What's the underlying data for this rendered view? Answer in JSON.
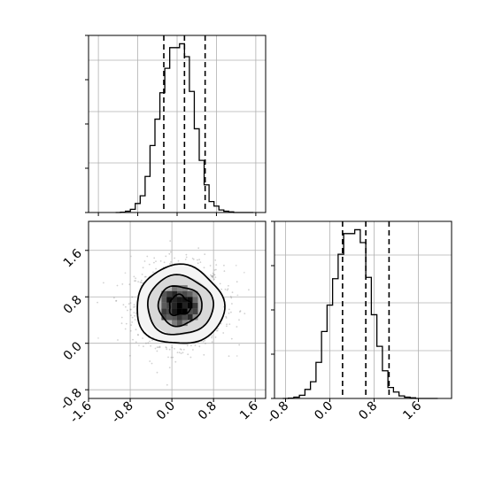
{
  "chart_data": [
    {
      "panel": "histogram-param-1",
      "type": "bar",
      "histtype": "step",
      "x": [
        -1.2,
        -1.1,
        -1.0,
        -0.9,
        -0.8,
        -0.7,
        -0.6,
        -0.5,
        -0.4,
        -0.3,
        -0.2,
        -0.1,
        0.0,
        0.1,
        0.2,
        0.3,
        0.4,
        0.5,
        0.6,
        0.7,
        0.8,
        0.9,
        1.0,
        1.1,
        1.2,
        1.3,
        1.4,
        1.5
      ],
      "values": [
        0,
        0.5,
        2,
        5,
        14,
        26,
        56,
        104,
        145,
        186,
        224,
        256,
        256,
        262,
        242,
        188,
        130,
        81,
        43,
        17,
        10,
        4,
        2,
        1,
        0,
        0,
        0,
        0
      ],
      "quantiles": [
        -0.27,
        0.15,
        0.57
      ],
      "xlim": [
        -1.8,
        1.8
      ],
      "ylim": [
        0,
        275
      ],
      "grid": true,
      "xtick_labels": [],
      "ytick_labels": []
    },
    {
      "panel": "histogram-param-2",
      "type": "bar",
      "histtype": "step",
      "x": [
        -0.8,
        -0.7,
        -0.6,
        -0.5,
        -0.4,
        -0.3,
        -0.2,
        -0.1,
        0.0,
        0.1,
        0.2,
        0.3,
        0.4,
        0.5,
        0.6,
        0.7,
        0.8,
        0.9,
        1.0,
        1.1,
        1.2,
        1.3,
        1.4,
        1.5,
        1.6,
        1.7,
        1.8,
        1.9
      ],
      "values": [
        0,
        0.5,
        2,
        5,
        14,
        26,
        56,
        104,
        145,
        186,
        224,
        256,
        256,
        262,
        242,
        188,
        130,
        81,
        43,
        17,
        10,
        4,
        2,
        1,
        0,
        0,
        0,
        0
      ],
      "quantiles": [
        0.23,
        0.65,
        1.07
      ],
      "xlim": [
        -1.0,
        2.2
      ],
      "ylim": [
        0,
        275
      ],
      "grid": true,
      "xtick_labels": [
        "-0.8",
        "0.0",
        "0.8",
        "1.6"
      ],
      "ytick_labels": []
    },
    {
      "panel": "joint-density",
      "type": "scatter",
      "center": [
        0.15,
        0.65
      ],
      "spread": [
        0.42,
        0.34
      ],
      "correlation": 0.0,
      "contour_levels": [
        "0.5-sigma",
        "1-sigma",
        "1.5-sigma",
        "2-sigma"
      ],
      "xlim": [
        -1.6,
        1.8
      ],
      "ylim": [
        -0.95,
        2.1
      ],
      "grid": true,
      "xtick_labels": [
        "-1.6",
        "-0.8",
        "0.0",
        "0.8",
        "1.6"
      ],
      "ytick_labels": [
        "-0.8",
        "0.0",
        "0.8",
        "1.6"
      ]
    }
  ]
}
